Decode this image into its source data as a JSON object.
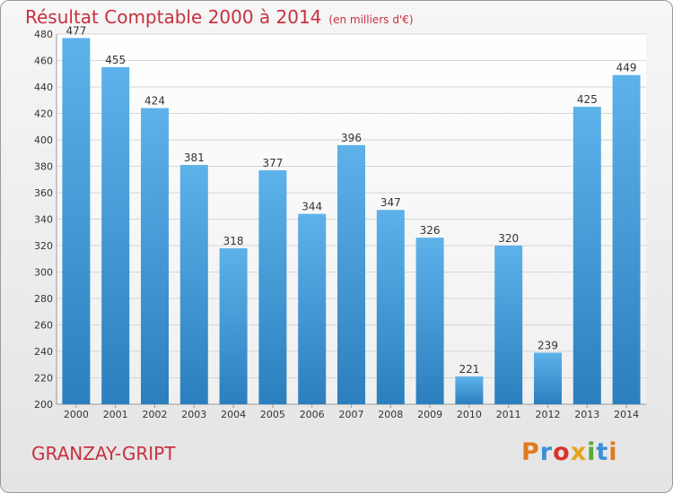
{
  "header": {
    "title": "Résultat Comptable 2000 à 2014",
    "unit": "(en milliers d'€)"
  },
  "footer": {
    "city": "GRANZAY-GRIPT",
    "logo": "Proxiti"
  },
  "colors": {
    "title": "#c8303e",
    "bar_light": "#5eb2ea",
    "bar_dark": "#2b7fbe"
  },
  "chart_data": {
    "type": "bar",
    "title": "Résultat Comptable 2000 à 2014",
    "subtitle": "(en milliers d'€)",
    "xlabel": "",
    "ylabel": "",
    "categories": [
      "2000",
      "2001",
      "2002",
      "2003",
      "2004",
      "2005",
      "2006",
      "2007",
      "2008",
      "2009",
      "2010",
      "2011",
      "2012",
      "2013",
      "2014"
    ],
    "values": [
      477,
      455,
      424,
      381,
      318,
      377,
      344,
      396,
      347,
      326,
      221,
      320,
      239,
      425,
      449
    ],
    "ylim": [
      200,
      480
    ],
    "yticks": [
      200,
      220,
      240,
      260,
      280,
      300,
      320,
      340,
      360,
      380,
      400,
      420,
      440,
      460,
      480
    ],
    "grid": true,
    "data_labels": true
  }
}
